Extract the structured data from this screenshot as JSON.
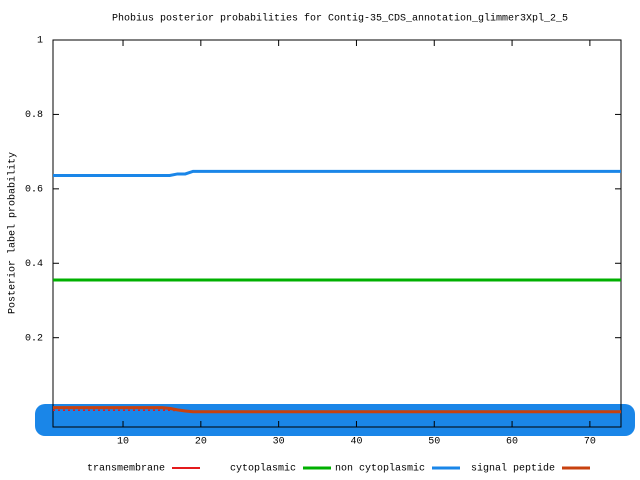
{
  "chart_data": {
    "type": "line",
    "title": "Phobius posterior probabilities for Contig-35_CDS_annotation_glimmer3Xpl_2_5",
    "y_label": "Posterior label probability",
    "x": [
      1,
      15,
      16,
      17,
      18,
      19,
      74
    ],
    "series": [
      {
        "name": "transmembrane",
        "color": "#e41a1c",
        "values": [
          0.005,
          0.005,
          0.005,
          0.004,
          0.002,
          0,
          0
        ]
      },
      {
        "name": "cytoplasmic",
        "color": "#00b000",
        "values": [
          0.355,
          0.355,
          0.355,
          0.355,
          0.355,
          0.355,
          0.355
        ]
      },
      {
        "name": "non cytoplasmic",
        "color": "#1a86e8",
        "values": [
          0.636,
          0.636,
          0.636,
          0.64,
          0.64,
          0.647,
          0.647
        ]
      },
      {
        "name": "signal peptide",
        "color": "#c8410f",
        "values": [
          0.012,
          0.012,
          0.01,
          0.006,
          0.003,
          0.001,
          0.001
        ]
      }
    ],
    "xlim": [
      1,
      74
    ],
    "ylim": [
      -0.04,
      1
    ],
    "xticks": [
      10,
      20,
      30,
      40,
      50,
      60,
      70
    ],
    "yticks": [
      0.2,
      0.4,
      0.6,
      0.8,
      1
    ],
    "legend": "bottom"
  }
}
